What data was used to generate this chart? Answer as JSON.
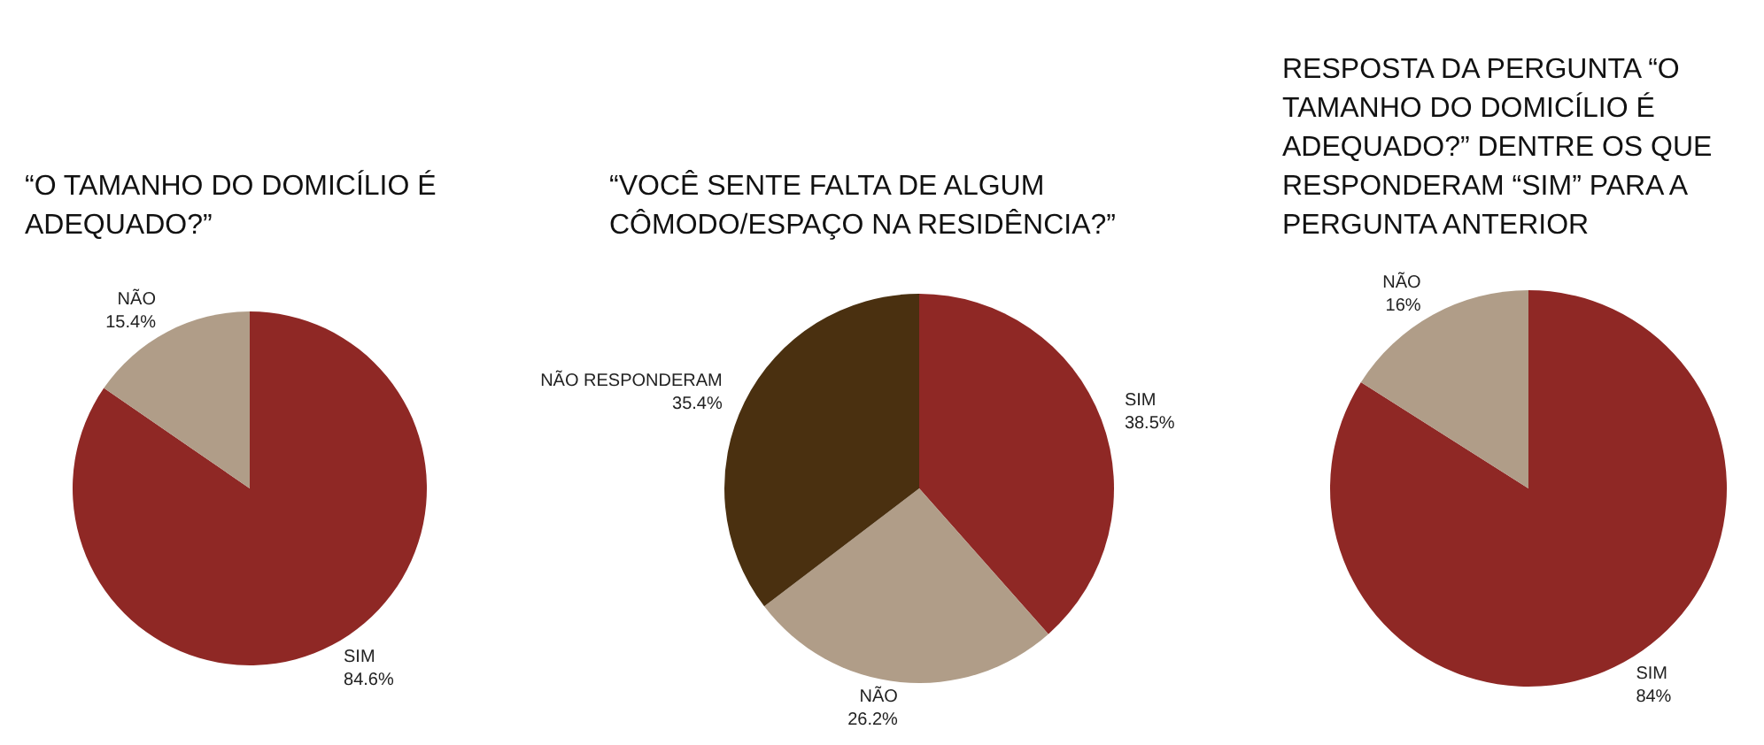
{
  "chart_data": [
    {
      "type": "pie",
      "title": "“O TAMANHO DO DOMICÍLIO É ADEQUADO?”",
      "categories": [
        "SIM",
        "NÃO"
      ],
      "values": [
        84.6,
        15.4
      ],
      "value_labels": [
        "84.6%",
        "15.4%"
      ],
      "colors": [
        "#8f2825",
        "#b09d88"
      ],
      "legend": false
    },
    {
      "type": "pie",
      "title": "“VOCÊ SENTE FALTA DE ALGUM CÔMODO/ESPAÇO NA RESIDÊNCIA?”",
      "categories": [
        "SIM",
        "NÃO",
        "NÃO RESPONDERAM"
      ],
      "values": [
        38.5,
        26.2,
        35.4
      ],
      "value_labels": [
        "38.5%",
        "26.2%",
        "35.4%"
      ],
      "colors": [
        "#8f2825",
        "#b09d88",
        "#4a3010"
      ],
      "legend": false
    },
    {
      "type": "pie",
      "title": "RESPOSTA DA PERGUNTA “O TAMANHO DO DOMICÍLIO É ADEQUADO?” DENTRE OS QUE RESPONDERAM “SIM” PARA A PERGUNTA ANTERIOR",
      "categories": [
        "SIM",
        "NÃO"
      ],
      "values": [
        84,
        16
      ],
      "value_labels": [
        "84%",
        "16%"
      ],
      "colors": [
        "#8f2825",
        "#b09d88"
      ],
      "legend": false
    }
  ]
}
